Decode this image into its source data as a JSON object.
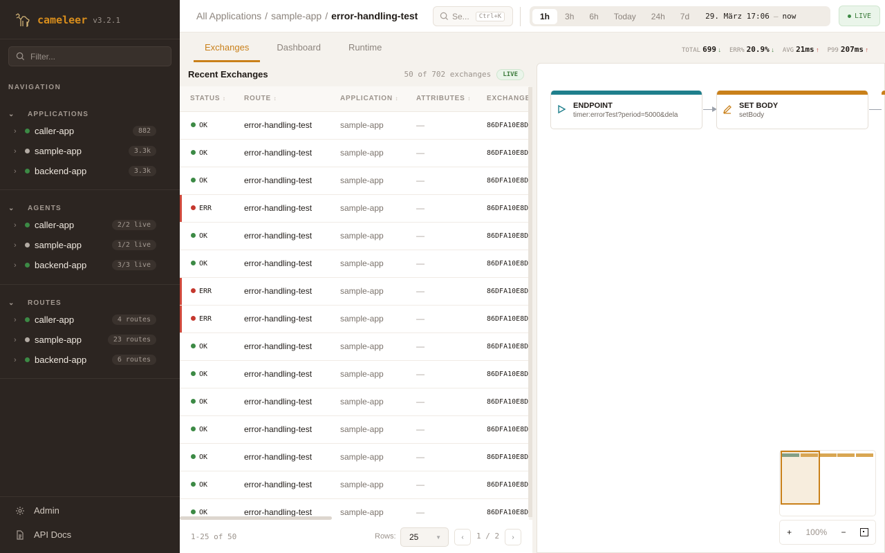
{
  "brand": {
    "name": "cameleer",
    "version": "v3.2.1",
    "accent": "#d98e1c"
  },
  "sidebar": {
    "filter_placeholder": "Filter...",
    "nav_label": "NAVIGATION",
    "sections": [
      {
        "title": "APPLICATIONS",
        "items": [
          {
            "label": "caller-app",
            "badge": "882",
            "status": "green"
          },
          {
            "label": "sample-app",
            "badge": "3.3k",
            "status": "gray"
          },
          {
            "label": "backend-app",
            "badge": "3.3k",
            "status": "green"
          }
        ]
      },
      {
        "title": "AGENTS",
        "items": [
          {
            "label": "caller-app",
            "badge": "2/2 live",
            "status": "green"
          },
          {
            "label": "sample-app",
            "badge": "1/2 live",
            "status": "gray"
          },
          {
            "label": "backend-app",
            "badge": "3/3 live",
            "status": "green"
          }
        ]
      },
      {
        "title": "ROUTES",
        "items": [
          {
            "label": "caller-app",
            "badge": "4 routes",
            "status": "green"
          },
          {
            "label": "sample-app",
            "badge": "23 routes",
            "status": "gray"
          },
          {
            "label": "backend-app",
            "badge": "6 routes",
            "status": "green"
          }
        ]
      }
    ],
    "footer": [
      {
        "label": "Admin",
        "icon": "gear-icon"
      },
      {
        "label": "API Docs",
        "icon": "document-icon"
      }
    ]
  },
  "breadcrumb": [
    "All Applications",
    "sample-app",
    "error-handling-test"
  ],
  "search": {
    "placeholder": "Se...",
    "shortcut": "Ctrl+K"
  },
  "time": {
    "options": [
      "1h",
      "3h",
      "6h",
      "Today",
      "24h",
      "7d"
    ],
    "selected": "1h",
    "range_start": "29. März 17:06",
    "range_end": "now"
  },
  "live_label": "LIVE",
  "tabs": [
    {
      "label": "Exchanges",
      "active": true
    },
    {
      "label": "Dashboard"
    },
    {
      "label": "Runtime"
    }
  ],
  "kpis": [
    {
      "label": "TOTAL",
      "value": "699",
      "trend": "down"
    },
    {
      "label": "ERR%",
      "value": "20.9%",
      "trend": "down"
    },
    {
      "label": "AVG",
      "value": "21ms",
      "trend": "up"
    },
    {
      "label": "P99",
      "value": "207ms",
      "trend": "up"
    }
  ],
  "exchanges": {
    "title": "Recent Exchanges",
    "count": "50 of 702 exchanges",
    "live": "LIVE",
    "columns": [
      "STATUS",
      "ROUTE",
      "APPLICATION",
      "ATTRIBUTES",
      "EXCHANGE"
    ],
    "rows": [
      {
        "status": "OK",
        "route": "error-handling-test",
        "app": "sample-app",
        "attrs": "—",
        "id": "86DFA10E8D"
      },
      {
        "status": "OK",
        "route": "error-handling-test",
        "app": "sample-app",
        "attrs": "—",
        "id": "86DFA10E8D"
      },
      {
        "status": "OK",
        "route": "error-handling-test",
        "app": "sample-app",
        "attrs": "—",
        "id": "86DFA10E8D"
      },
      {
        "status": "ERR",
        "route": "error-handling-test",
        "app": "sample-app",
        "attrs": "—",
        "id": "86DFA10E8D"
      },
      {
        "status": "OK",
        "route": "error-handling-test",
        "app": "sample-app",
        "attrs": "—",
        "id": "86DFA10E8D"
      },
      {
        "status": "OK",
        "route": "error-handling-test",
        "app": "sample-app",
        "attrs": "—",
        "id": "86DFA10E8D"
      },
      {
        "status": "ERR",
        "route": "error-handling-test",
        "app": "sample-app",
        "attrs": "—",
        "id": "86DFA10E8D"
      },
      {
        "status": "ERR",
        "route": "error-handling-test",
        "app": "sample-app",
        "attrs": "—",
        "id": "86DFA10E8D"
      },
      {
        "status": "OK",
        "route": "error-handling-test",
        "app": "sample-app",
        "attrs": "—",
        "id": "86DFA10E8D"
      },
      {
        "status": "OK",
        "route": "error-handling-test",
        "app": "sample-app",
        "attrs": "—",
        "id": "86DFA10E8D"
      },
      {
        "status": "OK",
        "route": "error-handling-test",
        "app": "sample-app",
        "attrs": "—",
        "id": "86DFA10E8D"
      },
      {
        "status": "OK",
        "route": "error-handling-test",
        "app": "sample-app",
        "attrs": "—",
        "id": "86DFA10E8D"
      },
      {
        "status": "OK",
        "route": "error-handling-test",
        "app": "sample-app",
        "attrs": "—",
        "id": "86DFA10E8D"
      },
      {
        "status": "OK",
        "route": "error-handling-test",
        "app": "sample-app",
        "attrs": "—",
        "id": "86DFA10E8D"
      },
      {
        "status": "OK",
        "route": "error-handling-test",
        "app": "sample-app",
        "attrs": "—",
        "id": "86DFA10E8D"
      }
    ],
    "pager": {
      "range": "1-25 of 50",
      "rows_label": "Rows:",
      "rows_value": "25",
      "page": "1 / 2"
    }
  },
  "diagram": {
    "nodes": [
      {
        "title": "ENDPOINT",
        "subtitle": "timer:errorTest?period=5000&dela",
        "color": "#1f7f8c",
        "icon": "play-icon"
      },
      {
        "title": "SET BODY",
        "subtitle": "setBody",
        "color": "#c9801a",
        "icon": "pencil-icon"
      }
    ],
    "zoom": "100%"
  },
  "colors": {
    "ok": "#3c8a45",
    "err": "#c4382e",
    "idle": "#b3aba4"
  }
}
